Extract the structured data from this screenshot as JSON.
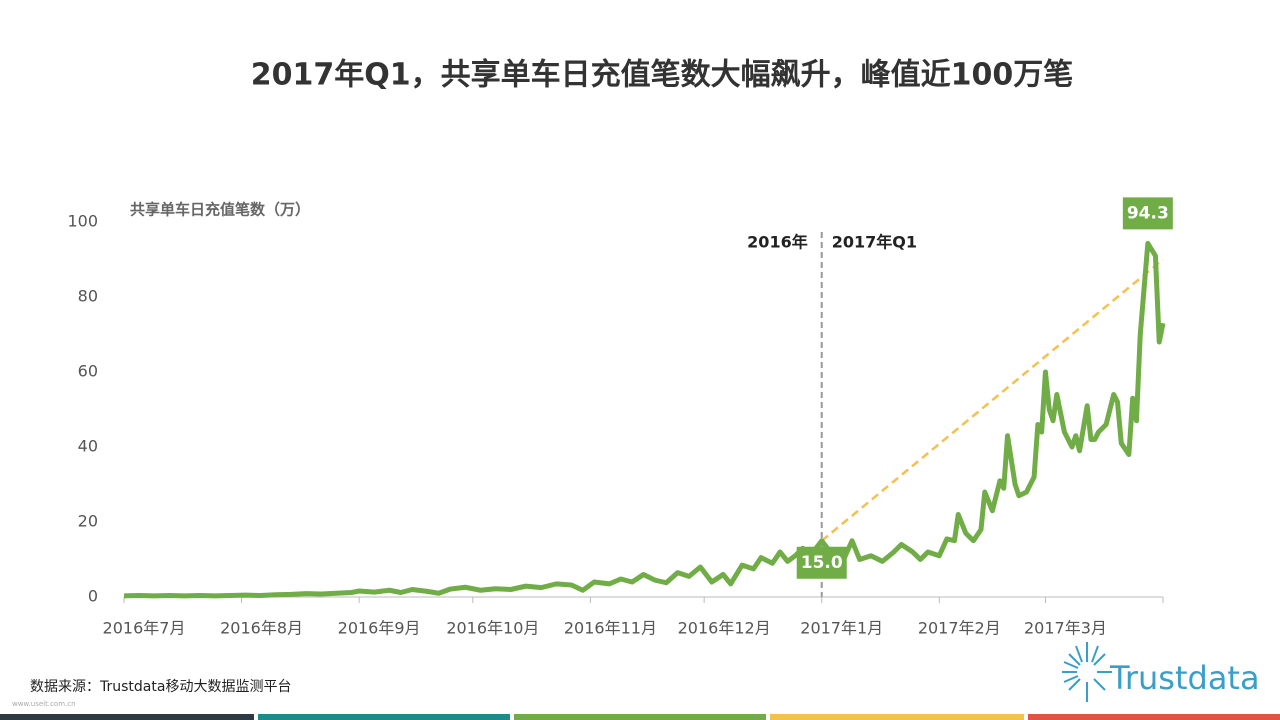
{
  "chart_data": {
    "type": "line",
    "title": "2017年Q1，共享单车日充值笔数大幅飙升，峰值近100万笔",
    "y_label": "共享单车日充值笔数（万）",
    "xlim": [
      0,
      274
    ],
    "xticks": [
      {
        "value": 0,
        "label": "2016年7月"
      },
      {
        "value": 31,
        "label": "2016年8月"
      },
      {
        "value": 62,
        "label": "2016年9月"
      },
      {
        "value": 92,
        "label": "2016年10月"
      },
      {
        "value": 123,
        "label": "2016年11月"
      },
      {
        "value": 153,
        "label": "2016年12月"
      },
      {
        "value": 184,
        "label": "2017年1月"
      },
      {
        "value": 215,
        "label": "2017年2月"
      },
      {
        "value": 243,
        "label": "2017年3月"
      }
    ],
    "ylim": [
      0,
      100
    ],
    "yticks": [
      0,
      20,
      40,
      60,
      80,
      100
    ],
    "series": [
      {
        "color": "#70ad47",
        "x": [
          0,
          4,
          8,
          12,
          16,
          20,
          24,
          28,
          32,
          36,
          40,
          44,
          48,
          52,
          56,
          60,
          62,
          66,
          70,
          73,
          76,
          80,
          83,
          86,
          90,
          94,
          98,
          102,
          106,
          110,
          114,
          118,
          121,
          124,
          128,
          131,
          134,
          137,
          140,
          143,
          146,
          149,
          152,
          155,
          158,
          160,
          163,
          166,
          168,
          171,
          173,
          175,
          177,
          179,
          181,
          184,
          187,
          190,
          192,
          194,
          197,
          200,
          203,
          205,
          208,
          210,
          212,
          215,
          217,
          219,
          220,
          222,
          224,
          226,
          227,
          229,
          231,
          232,
          233,
          235,
          236,
          238,
          240,
          241,
          242,
          243,
          244,
          245,
          246,
          248,
          250,
          251,
          252,
          254,
          255,
          256,
          257,
          259,
          261,
          262,
          263,
          265,
          266,
          267,
          268,
          270,
          272,
          273,
          274
        ],
        "values": [
          0.3,
          0.4,
          0.3,
          0.4,
          0.3,
          0.4,
          0.3,
          0.4,
          0.5,
          0.4,
          0.6,
          0.7,
          0.9,
          0.8,
          1.0,
          1.2,
          1.6,
          1.3,
          1.8,
          1.2,
          2.0,
          1.5,
          1.0,
          2.1,
          2.6,
          1.8,
          2.2,
          2.0,
          2.9,
          2.5,
          3.5,
          3.2,
          1.8,
          4.0,
          3.5,
          4.8,
          4.0,
          6.0,
          4.5,
          3.8,
          6.5,
          5.5,
          8.0,
          4.0,
          6.0,
          3.5,
          8.5,
          7.5,
          10.5,
          9.0,
          12.0,
          9.5,
          11.0,
          13.0,
          11.0,
          15.0,
          11.0,
          10.5,
          15.0,
          10.0,
          11.0,
          9.5,
          12.0,
          14.0,
          12.0,
          10.0,
          12.0,
          11.0,
          15.5,
          15.0,
          22.0,
          17.0,
          15.0,
          18.0,
          28.0,
          23.0,
          31.0,
          29.0,
          43.0,
          30.0,
          27.0,
          28.0,
          32.0,
          46.0,
          44.0,
          60.0,
          50.0,
          47.0,
          54.0,
          44.0,
          40.0,
          43.0,
          39.0,
          51.0,
          42.0,
          42.0,
          44.0,
          46.0,
          54.0,
          52.0,
          41.0,
          38.0,
          53.0,
          47.0,
          70.0,
          94.3,
          91.0,
          68.0,
          73.0
        ]
      }
    ],
    "annotations": [
      {
        "x": 184,
        "value": 15,
        "label": "15.0"
      },
      {
        "x": 270,
        "value": 94.3,
        "label": "94.3"
      }
    ],
    "trend_line": {
      "color": "#f5c04e",
      "x": [
        184,
        274
      ],
      "values": [
        15,
        90
      ]
    },
    "divider": {
      "x": 184,
      "left_label": "2016年",
      "right_label": "2017年Q1"
    }
  },
  "source": "数据来源：Trustdata移动大数据监测平台",
  "logo": "Trustdata",
  "watermark": "www.useit.com.cn"
}
